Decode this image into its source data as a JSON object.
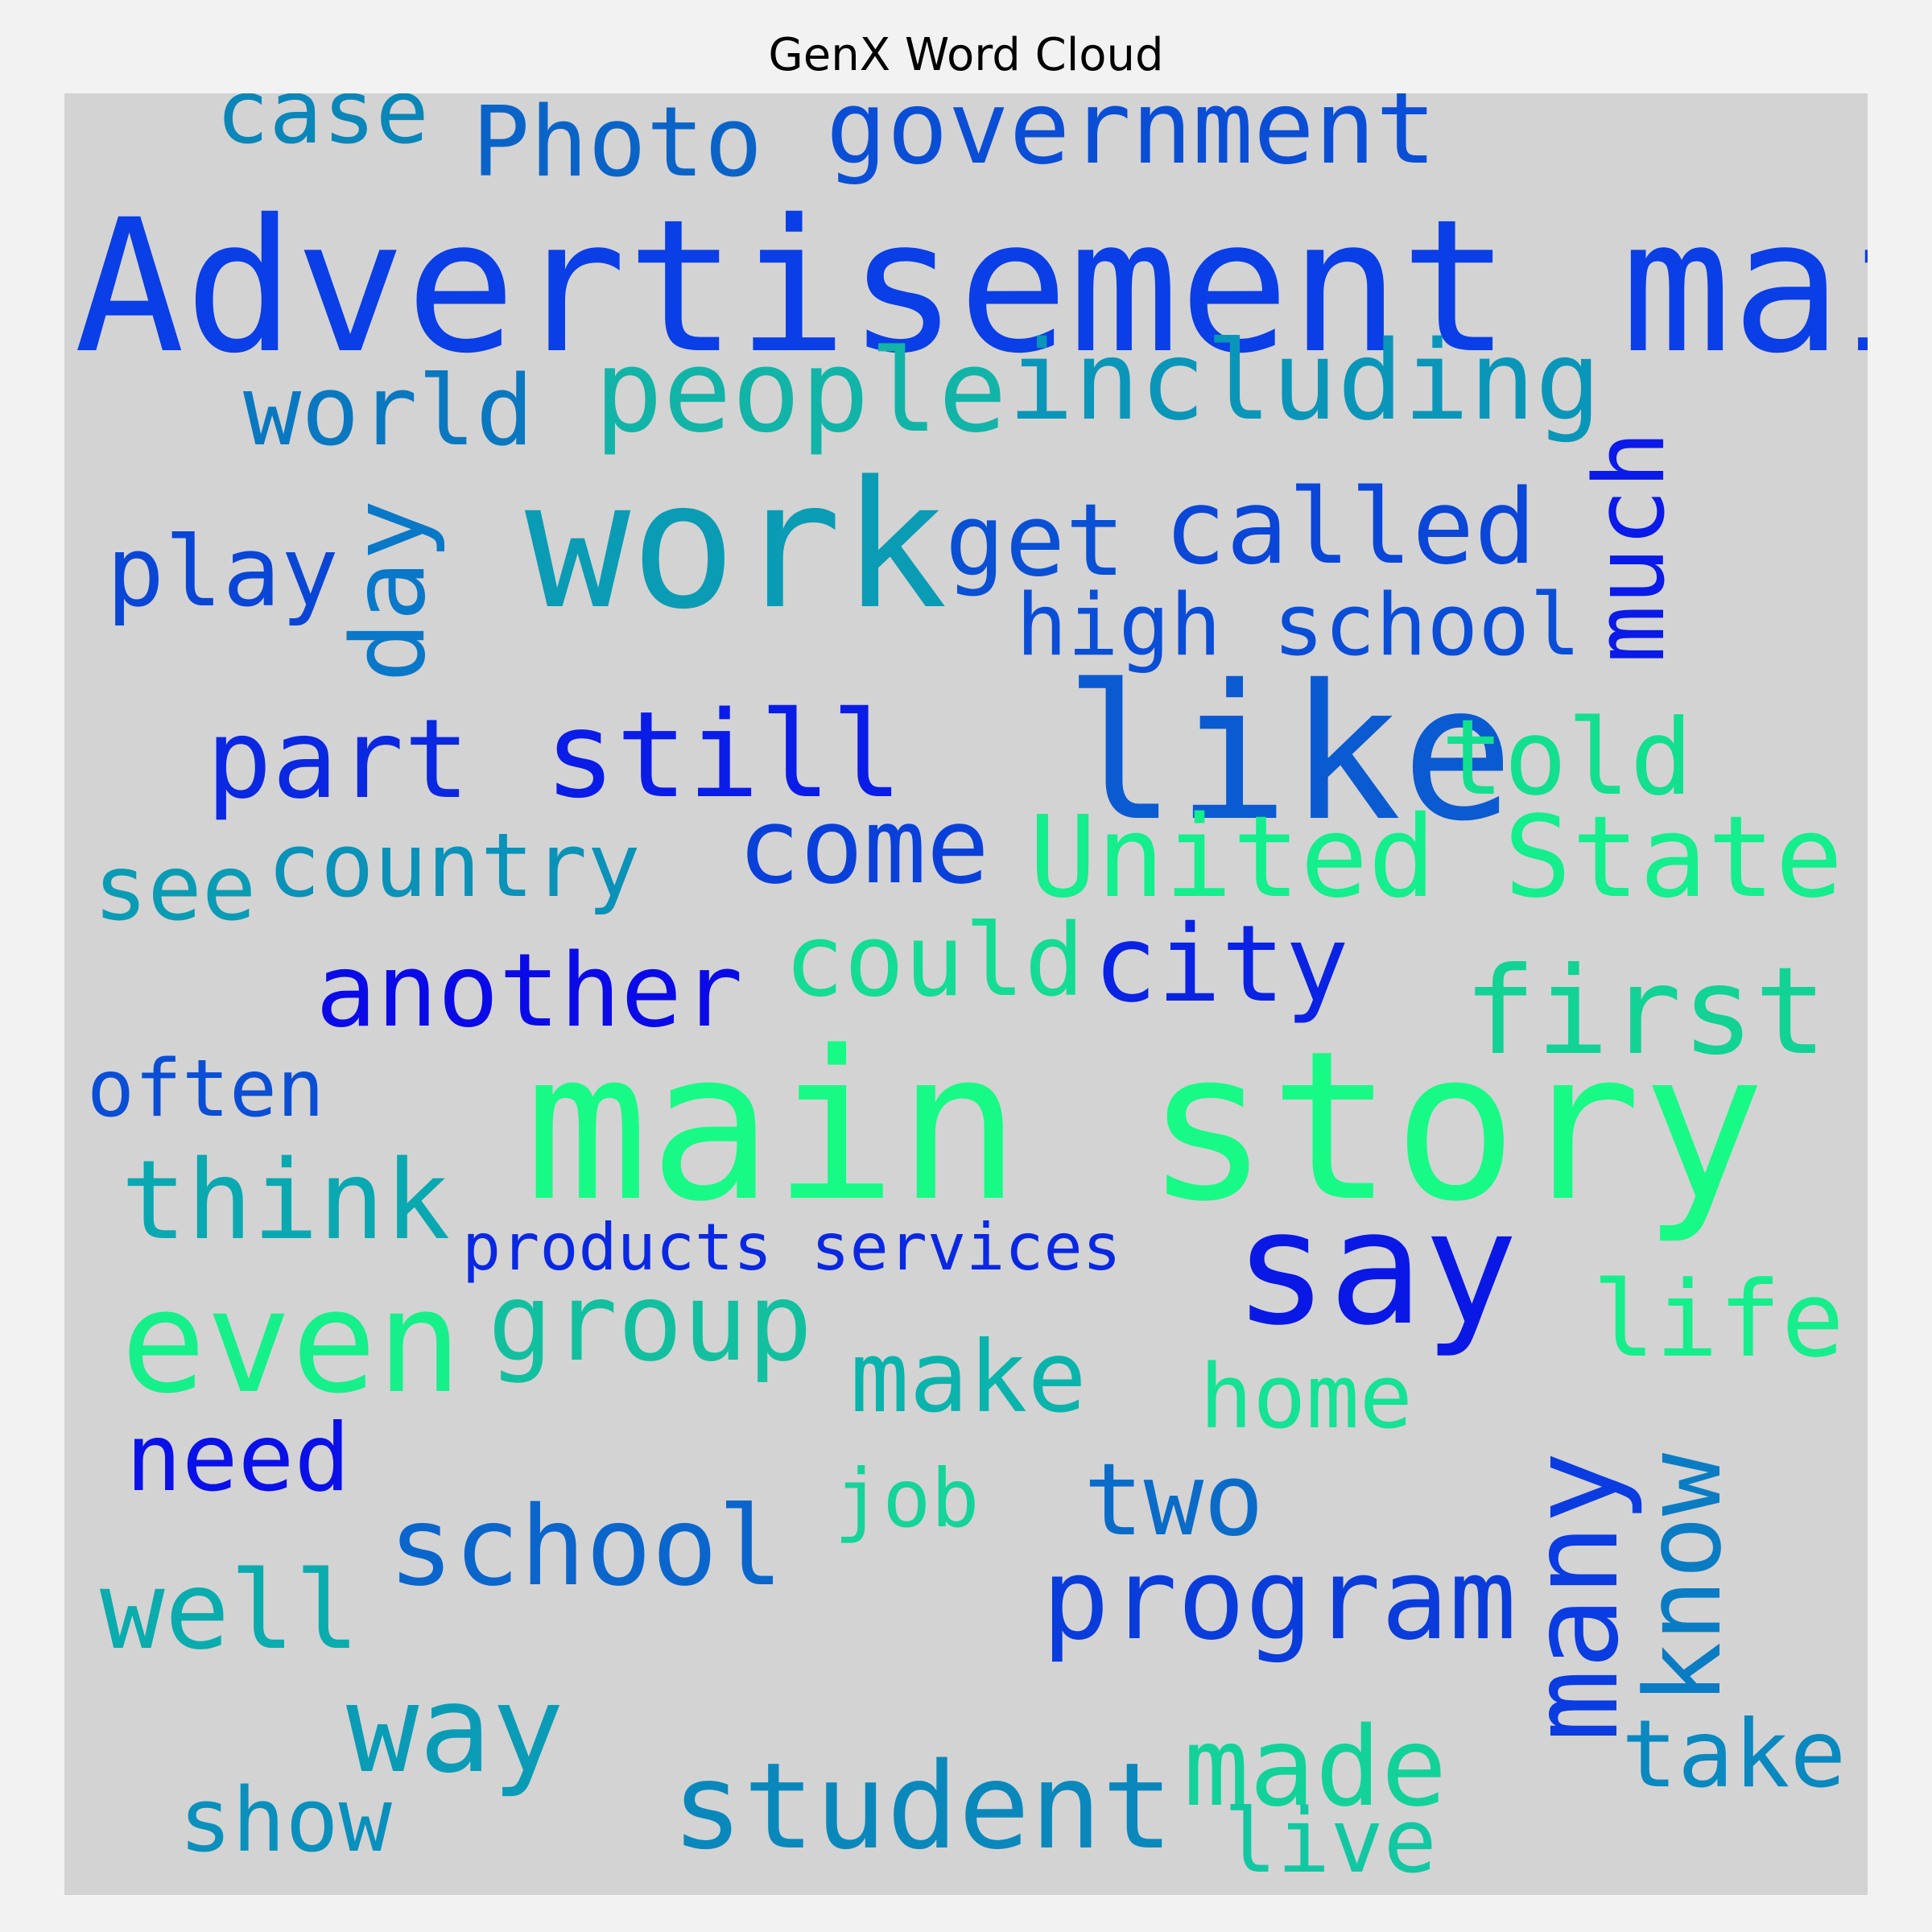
{
  "title": "GenX Word Cloud",
  "words": {
    "case": {
      "text": "case",
      "color": "#0a86b8"
    },
    "photo": {
      "text": "Photo",
      "color": "#0a64c8"
    },
    "government": {
      "text": "government",
      "color": "#0b4ed6"
    },
    "advertisement_main": {
      "text": "Advertisement main",
      "color": "#0a3ee6"
    },
    "world": {
      "text": "world",
      "color": "#0a78c0"
    },
    "people": {
      "text": "people",
      "color": "#12b4a8"
    },
    "including": {
      "text": "including",
      "color": "#0a96b8"
    },
    "much": {
      "text": "much",
      "color": "#0a1ae8"
    },
    "play": {
      "text": "play",
      "color": "#0a46d6"
    },
    "day": {
      "text": "day",
      "color": "#0a78c8"
    },
    "work": {
      "text": "work",
      "color": "#0a9cb4"
    },
    "get": {
      "text": "get",
      "color": "#0a50d4"
    },
    "called": {
      "text": "called",
      "color": "#0a46d8"
    },
    "high_school": {
      "text": "high school",
      "color": "#0a4ed8"
    },
    "part": {
      "text": "part",
      "color": "#0a28e2"
    },
    "still": {
      "text": "still",
      "color": "#0a1ce8"
    },
    "like": {
      "text": "like",
      "color": "#0a5ad2"
    },
    "told": {
      "text": "told",
      "color": "#12e08e"
    },
    "come": {
      "text": "come",
      "color": "#0a40da"
    },
    "see": {
      "text": "see",
      "color": "#0a9cb4"
    },
    "country": {
      "text": "country",
      "color": "#0a92b8"
    },
    "united_state": {
      "text": "United State",
      "color": "#14ee8c"
    },
    "another": {
      "text": "another",
      "color": "#0a0ae8"
    },
    "could": {
      "text": "could",
      "color": "#14dc94"
    },
    "city": {
      "text": "city",
      "color": "#0a22e4"
    },
    "first": {
      "text": "first",
      "color": "#12d296"
    },
    "often": {
      "text": "often",
      "color": "#0a4ed6"
    },
    "main_story": {
      "text": "main story",
      "color": "#18fa86"
    },
    "think": {
      "text": "think",
      "color": "#0aa8b0"
    },
    "products_services": {
      "text": "products services",
      "color": "#0a28e2"
    },
    "say": {
      "text": "say",
      "color": "#0a18e6"
    },
    "even": {
      "text": "even",
      "color": "#16f08a"
    },
    "group": {
      "text": "group",
      "color": "#12c0a0"
    },
    "life": {
      "text": "life",
      "color": "#16ee8c"
    },
    "make": {
      "text": "make",
      "color": "#0ab4ac"
    },
    "home": {
      "text": "home",
      "color": "#14e294"
    },
    "need": {
      "text": "need",
      "color": "#0a10e8"
    },
    "job": {
      "text": "job",
      "color": "#14d49a"
    },
    "two": {
      "text": "two",
      "color": "#0a6cc8"
    },
    "many": {
      "text": "many",
      "color": "#0a3ce2"
    },
    "know": {
      "text": "know",
      "color": "#0a7cc4"
    },
    "school": {
      "text": "school",
      "color": "#0a66cc"
    },
    "well": {
      "text": "well",
      "color": "#0aacae"
    },
    "program": {
      "text": "program",
      "color": "#0a3cdc"
    },
    "way": {
      "text": "way",
      "color": "#0a9cb6"
    },
    "take": {
      "text": "take",
      "color": "#0a88c0"
    },
    "made": {
      "text": "made",
      "color": "#12d29a"
    },
    "student": {
      "text": "student",
      "color": "#0a88bc"
    },
    "show": {
      "text": "show",
      "color": "#0a90bc"
    },
    "live": {
      "text": "live",
      "color": "#12c8a2"
    }
  }
}
